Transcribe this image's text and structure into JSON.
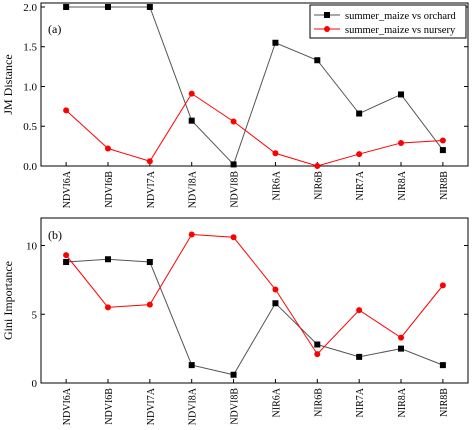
{
  "chart_data": [
    {
      "type": "line",
      "panel_label": "(a)",
      "categories": [
        "NDVI6A",
        "NDVI6B",
        "NDVI7A",
        "NDVI8A",
        "NDVI8B",
        "NIR6A",
        "NIR6B",
        "NIR7A",
        "NIR8A",
        "NIR8B"
      ],
      "ylabel": "JM Distance",
      "ylim": [
        0,
        2.05
      ],
      "yticks": [
        0.0,
        0.5,
        1.0,
        1.5,
        2.0
      ],
      "ytick_labels": [
        "0.0",
        "0.5",
        "1.0",
        "1.5",
        "2.0"
      ],
      "legend_position": "top-right",
      "series": [
        {
          "name": "summer_maize vs orchard",
          "color": "#000000",
          "line_color": "#555555",
          "marker": "square",
          "values": [
            2.0,
            2.0,
            2.0,
            0.57,
            0.02,
            1.55,
            1.33,
            0.66,
            0.9,
            0.2
          ]
        },
        {
          "name": "summer_maize vs nursery",
          "color": "#ff0000",
          "line_color": "#ff0000",
          "marker": "circle",
          "values": [
            0.7,
            0.22,
            0.06,
            0.91,
            0.56,
            0.16,
            0.0,
            0.15,
            0.29,
            0.32
          ]
        }
      ]
    },
    {
      "type": "line",
      "panel_label": "(b)",
      "categories": [
        "NDVI6A",
        "NDVI6B",
        "NDVI7A",
        "NDVI8A",
        "NDVI8B",
        "NIR6A",
        "NIR6B",
        "NIR7A",
        "NIR8A",
        "NIR8B"
      ],
      "ylabel": "Gini Importance",
      "ylim": [
        0,
        12
      ],
      "yticks": [
        0,
        5,
        10
      ],
      "ytick_labels": [
        "0",
        "5",
        "10"
      ],
      "series": [
        {
          "color": "#000000",
          "line_color": "#555555",
          "marker": "square",
          "values": [
            8.8,
            9.0,
            8.8,
            1.3,
            0.6,
            5.8,
            2.8,
            1.9,
            2.5,
            1.3
          ]
        },
        {
          "color": "#ff0000",
          "line_color": "#ff0000",
          "marker": "circle",
          "values": [
            9.3,
            5.5,
            5.7,
            10.8,
            10.6,
            6.8,
            2.1,
            5.3,
            3.3,
            7.1
          ]
        }
      ]
    }
  ]
}
